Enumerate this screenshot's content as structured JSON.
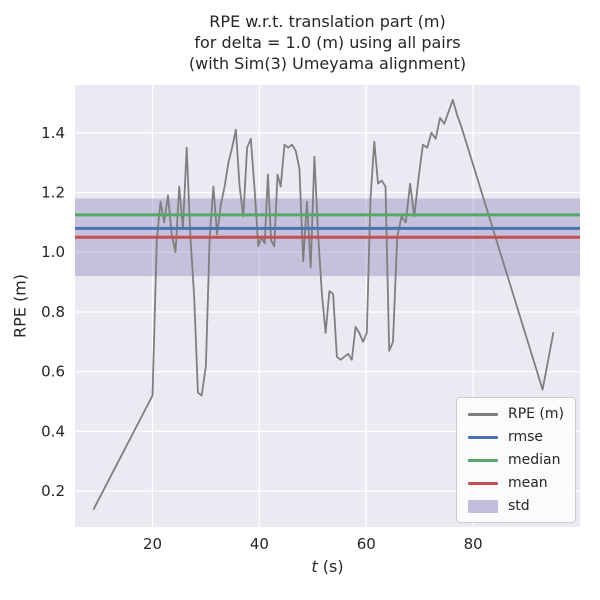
{
  "chart_data": {
    "type": "line",
    "title_lines": [
      "RPE w.r.t. translation part (m)",
      "for delta = 1.0 (m) using all pairs",
      "(with Sim(3) Umeyama alignment)"
    ],
    "xlabel": "t (s)",
    "xlabel_math": "t",
    "xlabel_units": " (s)",
    "ylabel": "RPE (m)",
    "xlim": [
      5.5,
      100
    ],
    "ylim": [
      0.08,
      1.56
    ],
    "xticks": [
      20,
      40,
      60,
      80
    ],
    "yticks": [
      0.2,
      0.4,
      0.6,
      0.8,
      1.0,
      1.2,
      1.4
    ],
    "grid": true,
    "legend_position": "lower right",
    "axes_facecolor": "#eaeaf2",
    "grid_color": "#ffffff",
    "text_color": "#262626",
    "series": [
      {
        "name": "RPE (m)",
        "color": "#7f7f7f",
        "points": [
          [
            9,
            0.14
          ],
          [
            20,
            0.52
          ],
          [
            20.8,
            1.04
          ],
          [
            21.5,
            1.17
          ],
          [
            22.2,
            1.1
          ],
          [
            22.9,
            1.19
          ],
          [
            23.6,
            1.06
          ],
          [
            24.3,
            1.0
          ],
          [
            25,
            1.22
          ],
          [
            25.7,
            1.08
          ],
          [
            26.4,
            1.35
          ],
          [
            27.1,
            1.05
          ],
          [
            27.8,
            0.85
          ],
          [
            28.5,
            0.53
          ],
          [
            29.2,
            0.52
          ],
          [
            30,
            0.62
          ],
          [
            30.7,
            1.05
          ],
          [
            31.4,
            1.22
          ],
          [
            32.1,
            1.06
          ],
          [
            32.8,
            1.16
          ],
          [
            33.5,
            1.22
          ],
          [
            34.2,
            1.3
          ],
          [
            34.9,
            1.35
          ],
          [
            35.6,
            1.41
          ],
          [
            36.3,
            1.22
          ],
          [
            37,
            1.12
          ],
          [
            37.7,
            1.35
          ],
          [
            38.4,
            1.38
          ],
          [
            39.1,
            1.21
          ],
          [
            39.8,
            1.02
          ],
          [
            40.4,
            1.05
          ],
          [
            41,
            1.03
          ],
          [
            41.6,
            1.26
          ],
          [
            42.2,
            1.04
          ],
          [
            42.8,
            1.02
          ],
          [
            43.4,
            1.26
          ],
          [
            44,
            1.22
          ],
          [
            44.7,
            1.36
          ],
          [
            45.4,
            1.35
          ],
          [
            46.1,
            1.36
          ],
          [
            46.8,
            1.34
          ],
          [
            47.5,
            1.28
          ],
          [
            48.2,
            0.97
          ],
          [
            48.9,
            1.17
          ],
          [
            49.6,
            0.95
          ],
          [
            50.3,
            1.32
          ],
          [
            51,
            1.06
          ],
          [
            51.7,
            0.86
          ],
          [
            52.4,
            0.73
          ],
          [
            53.1,
            0.87
          ],
          [
            53.8,
            0.86
          ],
          [
            54.5,
            0.65
          ],
          [
            55.2,
            0.64
          ],
          [
            55.9,
            0.65
          ],
          [
            56.6,
            0.66
          ],
          [
            57.3,
            0.64
          ],
          [
            58,
            0.75
          ],
          [
            58.7,
            0.73
          ],
          [
            59.4,
            0.7
          ],
          [
            60.1,
            0.73
          ],
          [
            60.8,
            1.18
          ],
          [
            61.5,
            1.37
          ],
          [
            62.2,
            1.23
          ],
          [
            62.9,
            1.24
          ],
          [
            63.6,
            1.22
          ],
          [
            64.3,
            0.67
          ],
          [
            65,
            0.7
          ],
          [
            65.8,
            1.05
          ],
          [
            66.6,
            1.12
          ],
          [
            67.4,
            1.1
          ],
          [
            68.2,
            1.23
          ],
          [
            69,
            1.12
          ],
          [
            69.8,
            1.25
          ],
          [
            70.6,
            1.36
          ],
          [
            71.4,
            1.35
          ],
          [
            72.2,
            1.4
          ],
          [
            73,
            1.38
          ],
          [
            73.8,
            1.45
          ],
          [
            74.6,
            1.43
          ],
          [
            75.4,
            1.47
          ],
          [
            76.2,
            1.51
          ],
          [
            77,
            1.46
          ],
          [
            77.8,
            1.42
          ],
          [
            93,
            0.54
          ],
          [
            95,
            0.73
          ]
        ]
      }
    ],
    "stats": {
      "rmse": {
        "value": 1.08,
        "color": "#4c72b0"
      },
      "median": {
        "value": 1.125,
        "color": "#55a868"
      },
      "mean": {
        "value": 1.05,
        "color": "#c44e52"
      },
      "std": {
        "value": 0.13,
        "band": [
          0.92,
          1.18
        ],
        "color": "#8172b2",
        "alpha": 0.35
      }
    },
    "legend": [
      {
        "label": "RPE (m)",
        "kind": "line",
        "color": "#7f7f7f"
      },
      {
        "label": "rmse",
        "kind": "line",
        "color": "#4c72b0"
      },
      {
        "label": "median",
        "kind": "line",
        "color": "#55a868"
      },
      {
        "label": "mean",
        "kind": "line",
        "color": "#c44e52"
      },
      {
        "label": "std",
        "kind": "patch",
        "color": "#8172b2"
      }
    ]
  }
}
